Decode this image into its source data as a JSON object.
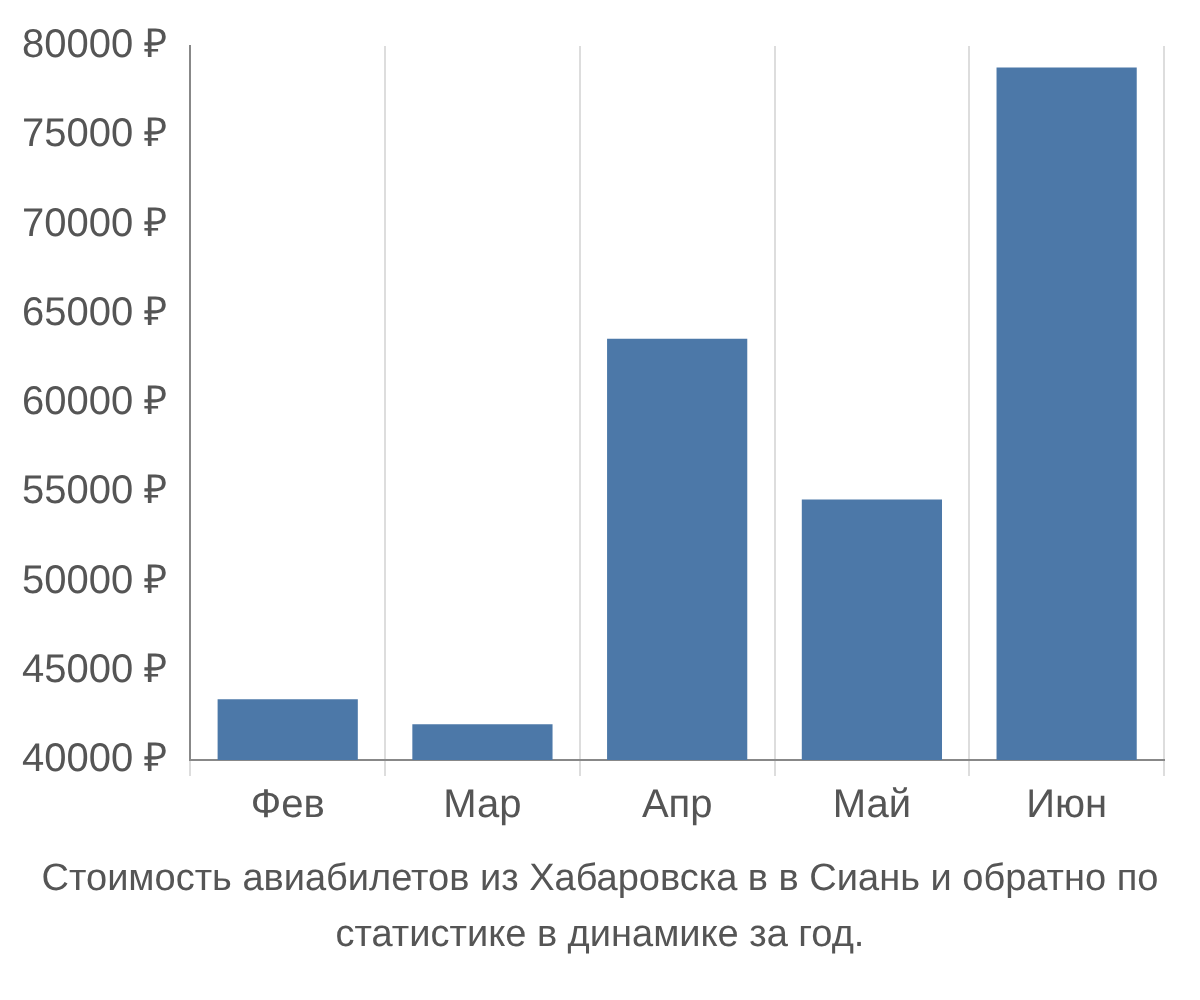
{
  "chart_data": {
    "type": "bar",
    "categories": [
      "Фев",
      "Мар",
      "Апр",
      "Май",
      "Июн"
    ],
    "values": [
      43400,
      42000,
      63600,
      54600,
      78800
    ],
    "color": "#4c78a8",
    "ylim": [
      40000,
      80000
    ],
    "yticks": [
      {
        "value": 40000,
        "label": "40000 ₽"
      },
      {
        "value": 45000,
        "label": "45000 ₽"
      },
      {
        "value": 50000,
        "label": "50000 ₽"
      },
      {
        "value": 55000,
        "label": "55000 ₽"
      },
      {
        "value": 60000,
        "label": "60000 ₽"
      },
      {
        "value": 65000,
        "label": "65000 ₽"
      },
      {
        "value": 70000,
        "label": "70000 ₽"
      },
      {
        "value": 75000,
        "label": "75000 ₽"
      },
      {
        "value": 80000,
        "label": "80000 ₽"
      }
    ],
    "grid": "x",
    "legend": false,
    "annotations": [
      "Стоимость авиабилетов из Хабаровска в в Сиань и обратно по статистике в динамике за год."
    ]
  }
}
